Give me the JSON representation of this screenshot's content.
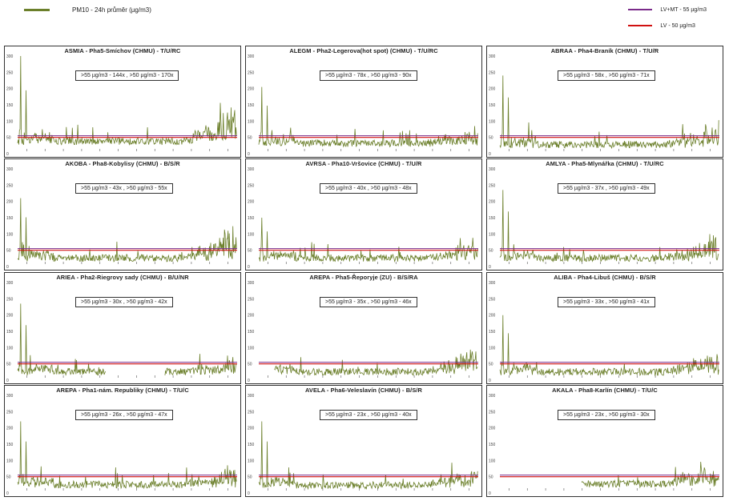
{
  "legend": {
    "series_label": "PM10 - 24h průměr (µg/m3)",
    "limits": [
      {
        "label": "LV+MT - 55 µg/m3",
        "color": "#7a2a8a"
      },
      {
        "label": "LV    - 50 µg/m3",
        "color": "#d01010"
      }
    ]
  },
  "colors": {
    "series": "#6b7f2a",
    "limit": "#d01010",
    "limit_mt": "#7a2a8a"
  },
  "chart_data": [
    {
      "type": "line",
      "title": "ASMIA - Pha5-Smíchov (CHMU) - T/U/RC",
      "exceedances": ">55 µg/m3 - 144x  ,  >50 µg/m3 - 170x",
      "ylim": [
        0,
        300
      ],
      "yticks": [
        0,
        50,
        100,
        150,
        200,
        250,
        300
      ],
      "limits": [
        50,
        55
      ],
      "peak": 270,
      "base": 38,
      "tail": 150,
      "start": 0,
      "gap": []
    },
    {
      "type": "line",
      "title": "ALEGM - Pha2-Legerova(hot spot) (CHMU) - T/U/RC",
      "exceedances": ">55 µg/m3 - 78x  ,  >50 µg/m3 - 90x",
      "ylim": [
        0,
        300
      ],
      "yticks": [
        0,
        50,
        100,
        150,
        200,
        250,
        300
      ],
      "limits": [
        50,
        55
      ],
      "peak": 205,
      "base": 32,
      "tail": 85,
      "start": 0,
      "gap": []
    },
    {
      "type": "line",
      "title": "ABRAA - Pha4-Braník (CHMU) - T/U/R",
      "exceedances": ">55 µg/m3 - 58x  ,  >50 µg/m3 - 71x",
      "ylim": [
        0,
        300
      ],
      "yticks": [
        0,
        50,
        100,
        150,
        200,
        250,
        300
      ],
      "limits": [
        50,
        55
      ],
      "peak": 240,
      "base": 28,
      "tail": 105,
      "start": 0,
      "gap": []
    },
    {
      "type": "line",
      "title": "AKOBA - Pha8-Kobylisy (CHMU) - B/S/R",
      "exceedances": ">55 µg/m3 - 43x  ,  >50 µg/m3 - 55x",
      "ylim": [
        0,
        300
      ],
      "yticks": [
        0,
        50,
        100,
        150,
        200,
        250,
        300
      ],
      "limits": [
        50,
        55
      ],
      "peak": 210,
      "base": 26,
      "tail": 130,
      "start": 0,
      "gap": []
    },
    {
      "type": "line",
      "title": "AVRSA - Pha10-Vršovice (CHMU) - T/U/R",
      "exceedances": ">55 µg/m3 - 40x  ,  >50 µg/m3 - 48x",
      "ylim": [
        0,
        300
      ],
      "yticks": [
        0,
        50,
        100,
        150,
        200,
        250,
        300
      ],
      "limits": [
        50,
        55
      ],
      "peak": 150,
      "base": 26,
      "tail": 75,
      "start": 0,
      "gap": []
    },
    {
      "type": "line",
      "title": "AMLYA - Pha5-Mlynářka (CHMU) - T/U/RC",
      "exceedances": ">55 µg/m3 - 37x  ,  >50 µg/m3 - 49x",
      "ylim": [
        0,
        300
      ],
      "yticks": [
        0,
        50,
        100,
        150,
        200,
        250,
        300
      ],
      "limits": [
        50,
        55
      ],
      "peak": 235,
      "base": 26,
      "tail": 115,
      "start": 0,
      "gap": []
    },
    {
      "type": "line",
      "title": "ARIEA - Pha2-Riegrovy sady (CHMU) - B/U/NR",
      "exceedances": ">55 µg/m3 - 30x  ,  >50 µg/m3 - 42x",
      "ylim": [
        0,
        300
      ],
      "yticks": [
        0,
        50,
        100,
        150,
        200,
        250,
        300
      ],
      "limits": [
        50,
        55
      ],
      "peak": 235,
      "base": 26,
      "tail": 70,
      "start": 0,
      "gap": [
        0.4,
        0.67
      ]
    },
    {
      "type": "line",
      "title": "AREPA - Pha5-Řeporyje (ZU) - B/S/RA",
      "exceedances": ">55 µg/m3 - 35x  ,  >50 µg/m3 - 46x",
      "ylim": [
        0,
        300
      ],
      "yticks": [
        0,
        50,
        100,
        150,
        200,
        250,
        300
      ],
      "limits": [
        50,
        55
      ],
      "peak": 240,
      "base": 26,
      "tail": 105,
      "start": 0.07,
      "gap": []
    },
    {
      "type": "line",
      "title": "ALIBA - Pha4-Libuš (CHMU) - B/S/R",
      "exceedances": ">55 µg/m3 - 33x  ,  >50 µg/m3 - 41x",
      "ylim": [
        0,
        300
      ],
      "yticks": [
        0,
        50,
        100,
        150,
        200,
        250,
        300
      ],
      "limits": [
        50,
        55
      ],
      "peak": 200,
      "base": 26,
      "tail": 90,
      "start": 0,
      "gap": []
    },
    {
      "type": "line",
      "title": "AREPA - Pha1-nám. Republiky (CHMU) - T/U/C",
      "exceedances": ">55 µg/m3 - 26x  ,  >50 µg/m3 - 47x",
      "ylim": [
        0,
        300
      ],
      "yticks": [
        0,
        50,
        100,
        150,
        200,
        250,
        300
      ],
      "limits": [
        50,
        55
      ],
      "peak": 220,
      "base": 26,
      "tail": 80,
      "start": 0,
      "gap": []
    },
    {
      "type": "line",
      "title": "AVELA - Pha6-Veleslavín (CHMU) - B/S/R",
      "exceedances": ">55 µg/m3 - 23x  ,  >50 µg/m3 - 40x",
      "ylim": [
        0,
        300
      ],
      "yticks": [
        0,
        50,
        100,
        150,
        200,
        250,
        300
      ],
      "limits": [
        50,
        55
      ],
      "peak": 220,
      "base": 24,
      "tail": 75,
      "start": 0,
      "gap": []
    },
    {
      "type": "line",
      "title": "AKALA - Pha8-Karlín (CHMU) - T/U/C",
      "exceedances": ">55 µg/m3 - 23x  ,  >50 µg/m3 - 30x",
      "ylim": [
        0,
        300
      ],
      "yticks": [
        0,
        50,
        100,
        150,
        200,
        250,
        300
      ],
      "limits": [
        50,
        55
      ],
      "peak": 95,
      "base": 28,
      "tail": 100,
      "start": 0.37,
      "gap": []
    }
  ]
}
